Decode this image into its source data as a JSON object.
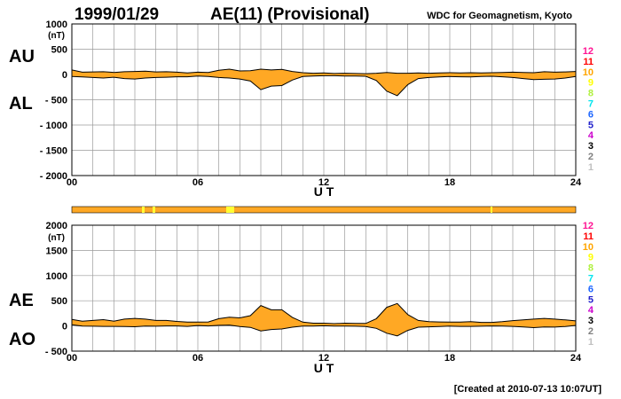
{
  "header": {
    "date": "1999/01/29",
    "title": "AE(11) (Provisional)",
    "source": "WDC for Geomagnetism, Kyoto"
  },
  "footer": {
    "created": "[Created at 2010-07-13 10:07UT]"
  },
  "colors": {
    "fill": "#FFA824",
    "quality_highlight": "#FFFF33",
    "grid": "#9a9a9a",
    "axis": "#000000"
  },
  "legend_scale": [
    {
      "label": "12",
      "color": "#FF1493"
    },
    {
      "label": "11",
      "color": "#FF0000"
    },
    {
      "label": "10",
      "color": "#FFA500"
    },
    {
      "label": "9",
      "color": "#FFFF00"
    },
    {
      "label": "8",
      "color": "#B0F040"
    },
    {
      "label": "7",
      "color": "#00E5EE"
    },
    {
      "label": "6",
      "color": "#1E66FF"
    },
    {
      "label": "5",
      "color": "#2222CC"
    },
    {
      "label": "4",
      "color": "#CC00CC"
    },
    {
      "label": "3",
      "color": "#000000"
    },
    {
      "label": "2",
      "color": "#808080"
    },
    {
      "label": "1",
      "color": "#C0C0C0"
    }
  ],
  "chart_data": [
    {
      "type": "area",
      "title": "AE(11) (Provisional)",
      "xlabel": "U T",
      "ylabel": "(nT)",
      "xlim": [
        0,
        24
      ],
      "ylim": [
        -2000,
        1000
      ],
      "xticks": [
        "00",
        "06",
        "12",
        "18",
        "24"
      ],
      "yticks": [
        "1000",
        "500",
        "0",
        "- 500",
        "- 1000",
        "- 1500",
        "- 2000"
      ],
      "series_labels": {
        "upper": "AU",
        "lower": "AL"
      },
      "x": [
        0,
        0.5,
        1,
        1.5,
        2,
        2.5,
        3,
        3.5,
        4,
        4.5,
        5,
        5.5,
        6,
        6.5,
        7,
        7.5,
        8,
        8.5,
        9,
        9.5,
        10,
        10.5,
        11,
        11.5,
        12,
        12.5,
        13,
        13.5,
        14,
        14.5,
        15,
        15.5,
        16,
        16.5,
        17,
        17.5,
        18,
        18.5,
        19,
        19.5,
        20,
        20.5,
        21,
        21.5,
        22,
        22.5,
        23,
        23.5,
        24
      ],
      "series": [
        {
          "name": "AU",
          "values": [
            90,
            45,
            50,
            55,
            40,
            55,
            60,
            65,
            50,
            55,
            45,
            30,
            45,
            40,
            85,
            105,
            70,
            75,
            105,
            90,
            100,
            60,
            35,
            25,
            30,
            20,
            25,
            20,
            15,
            25,
            40,
            25,
            25,
            30,
            25,
            30,
            35,
            30,
            35,
            30,
            35,
            40,
            45,
            40,
            35,
            55,
            45,
            50,
            60
          ]
        },
        {
          "name": "AL",
          "values": [
            -40,
            -50,
            -60,
            -70,
            -55,
            -80,
            -90,
            -70,
            -60,
            -55,
            -45,
            -45,
            -30,
            -40,
            -60,
            -70,
            -90,
            -130,
            -300,
            -230,
            -220,
            -110,
            -40,
            -30,
            -25,
            -25,
            -30,
            -30,
            -35,
            -120,
            -330,
            -420,
            -200,
            -80,
            -60,
            -50,
            -40,
            -45,
            -50,
            -40,
            -35,
            -45,
            -60,
            -80,
            -100,
            -95,
            -90,
            -70,
            -40
          ]
        }
      ]
    },
    {
      "type": "area",
      "title": "AE(11) (Provisional)",
      "xlabel": "U T",
      "ylabel": "(nT)",
      "xlim": [
        0,
        24
      ],
      "ylim": [
        -500,
        2000
      ],
      "xticks": [
        "00",
        "06",
        "12",
        "18",
        "24"
      ],
      "yticks": [
        "2000",
        "1500",
        "1000",
        "500",
        "0",
        "- 500"
      ],
      "series_labels": {
        "upper": "AE",
        "lower": "AO"
      },
      "x": [
        0,
        0.5,
        1,
        1.5,
        2,
        2.5,
        3,
        3.5,
        4,
        4.5,
        5,
        5.5,
        6,
        6.5,
        7,
        7.5,
        8,
        8.5,
        9,
        9.5,
        10,
        10.5,
        11,
        11.5,
        12,
        12.5,
        13,
        13.5,
        14,
        14.5,
        15,
        15.5,
        16,
        16.5,
        17,
        17.5,
        18,
        18.5,
        19,
        19.5,
        20,
        20.5,
        21,
        21.5,
        22,
        22.5,
        23,
        23.5,
        24
      ],
      "series": [
        {
          "name": "AE",
          "values": [
            130,
            95,
            110,
            125,
            95,
            135,
            150,
            135,
            110,
            110,
            90,
            75,
            75,
            80,
            145,
            175,
            160,
            205,
            405,
            320,
            320,
            170,
            75,
            55,
            55,
            45,
            55,
            50,
            50,
            145,
            370,
            445,
            225,
            110,
            85,
            80,
            75,
            75,
            85,
            70,
            70,
            85,
            105,
            120,
            135,
            150,
            135,
            120,
            100
          ]
        },
        {
          "name": "AO",
          "values": [
            25,
            -3,
            -5,
            -8,
            -8,
            -13,
            -15,
            -3,
            -5,
            0,
            0,
            -8,
            8,
            0,
            13,
            18,
            -10,
            -28,
            -98,
            -70,
            -60,
            -25,
            -3,
            -3,
            3,
            -3,
            -3,
            -5,
            -10,
            -48,
            -145,
            -198,
            -88,
            -25,
            -18,
            -10,
            -3,
            -8,
            -8,
            -5,
            0,
            -3,
            -8,
            -20,
            -33,
            -20,
            -23,
            -10,
            10
          ]
        }
      ]
    }
  ]
}
